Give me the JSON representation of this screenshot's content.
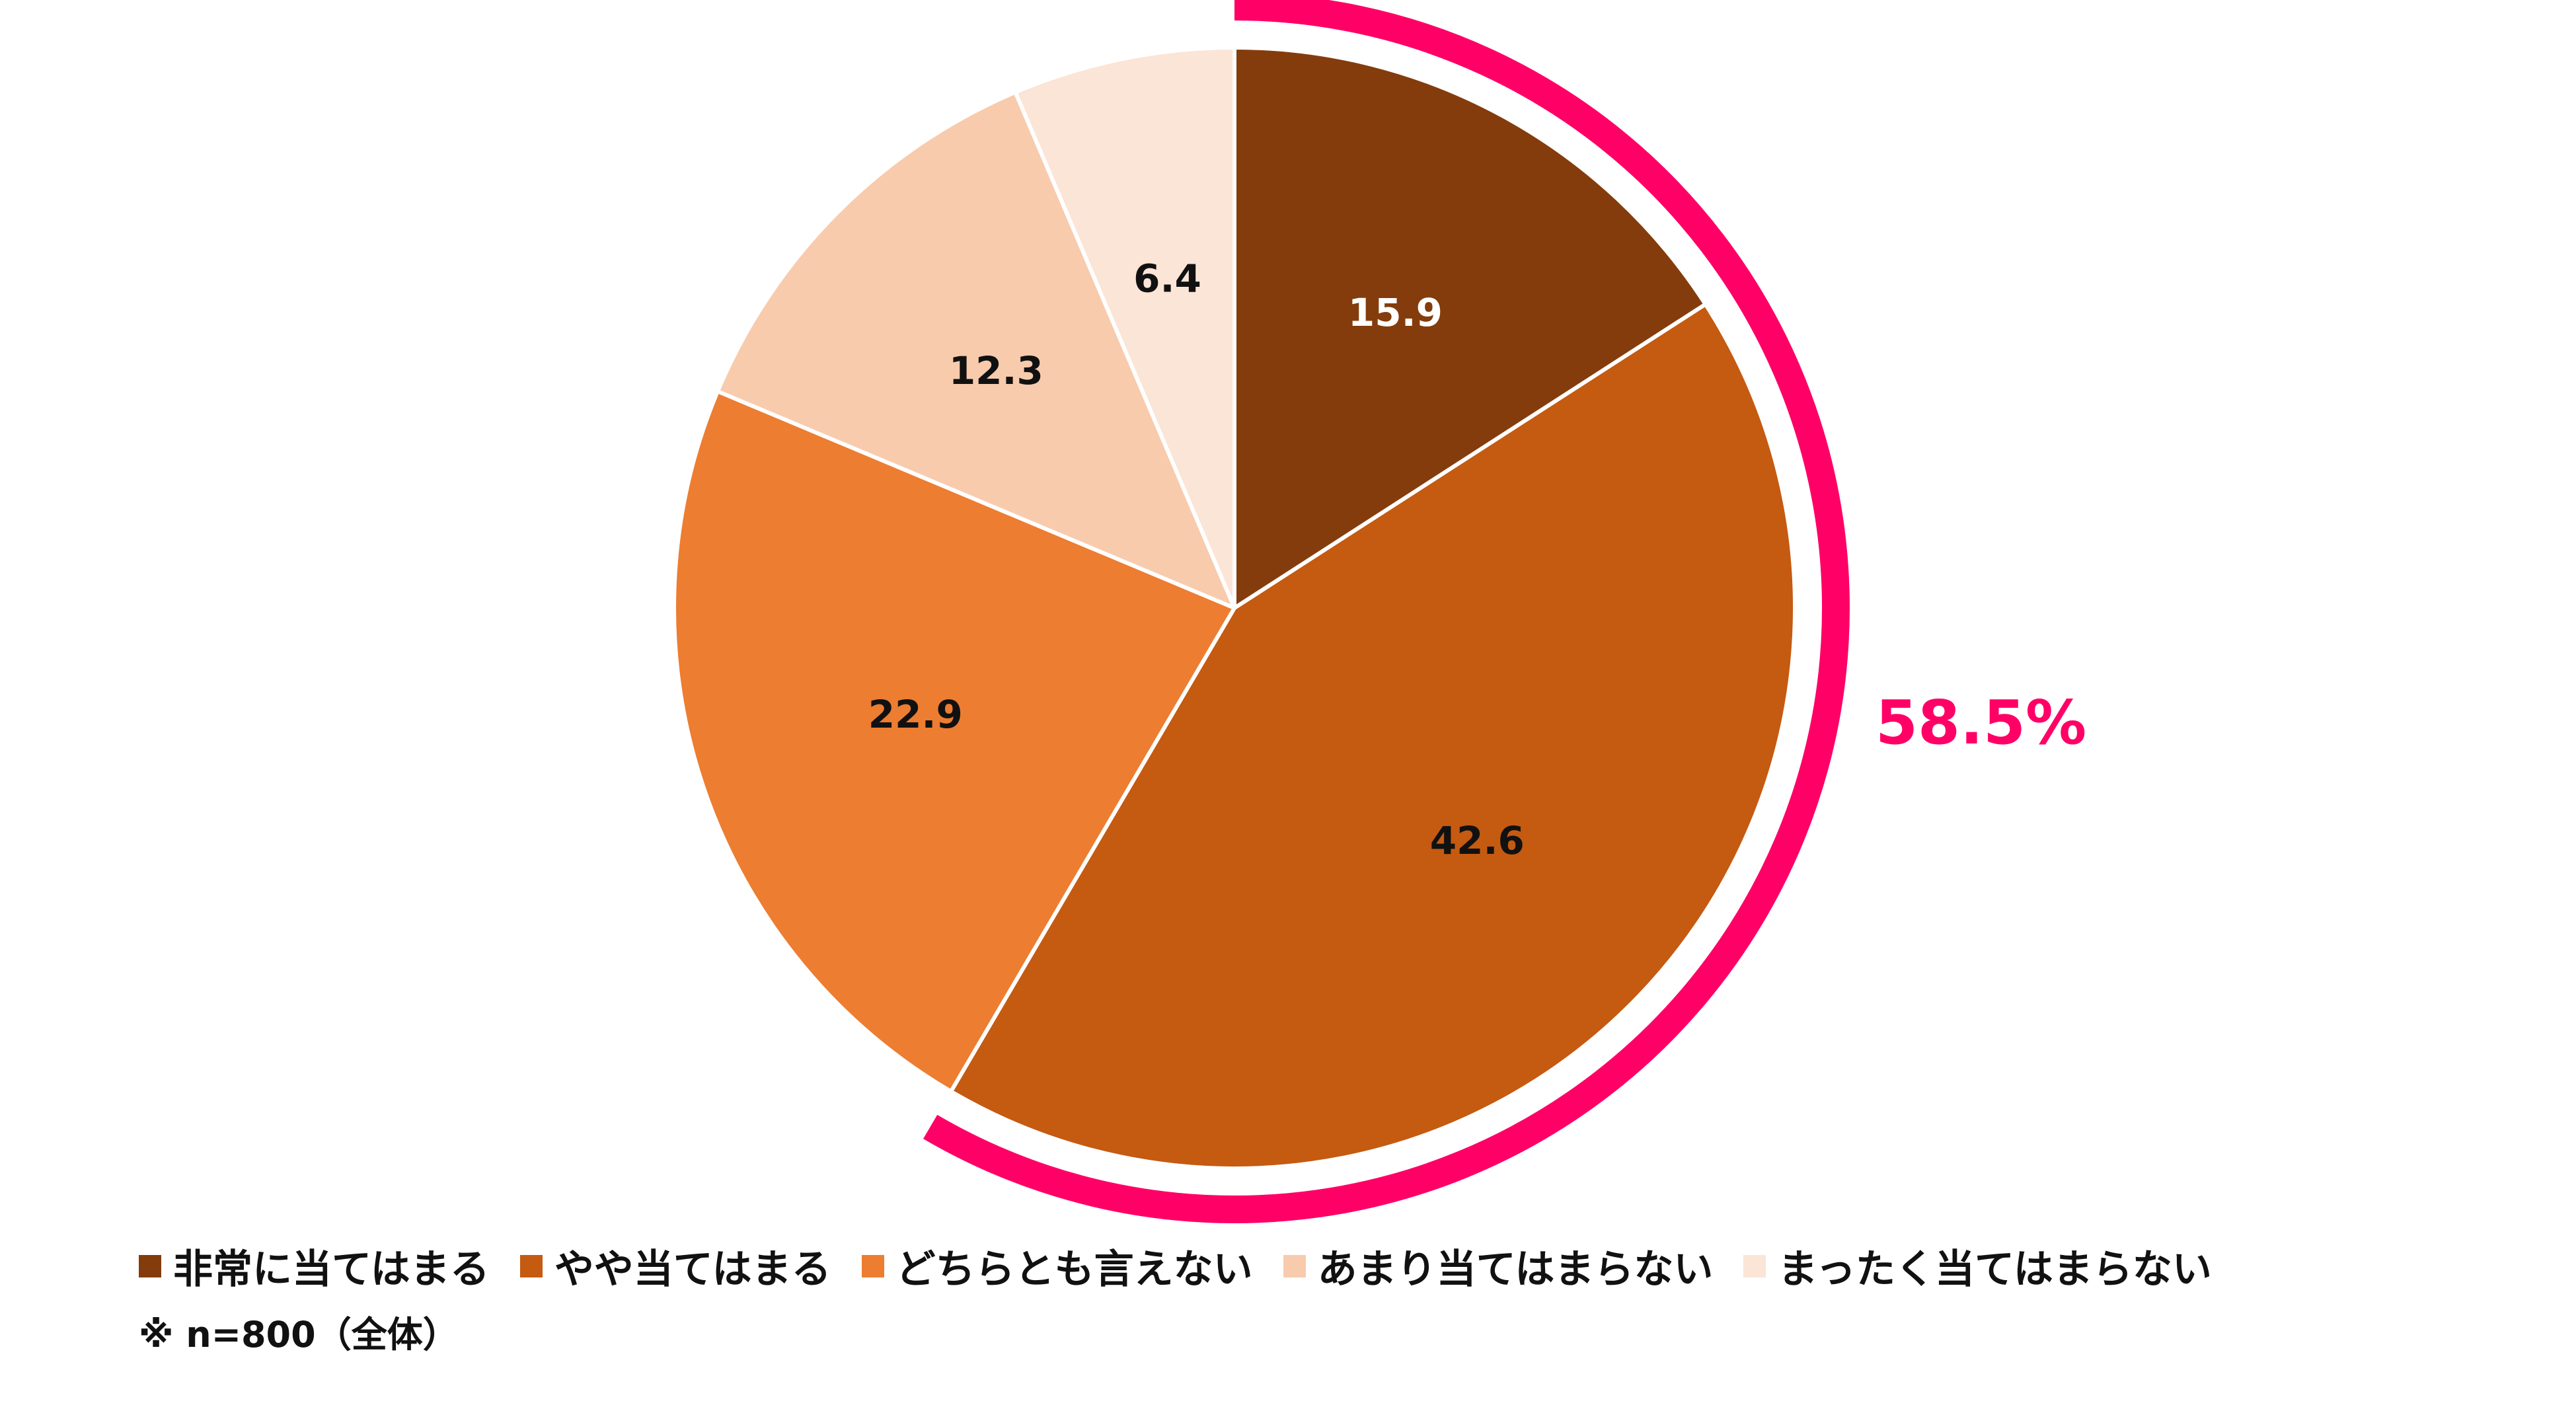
{
  "chart_data": {
    "type": "pie",
    "categories": [
      "非常に当てはまる",
      "やや当てはまる",
      "どちらとも言えない",
      "あまり当てはまらない",
      "まったく当てはまらない"
    ],
    "values": [
      15.9,
      42.6,
      22.9,
      12.3,
      6.4
    ],
    "value_labels": [
      "15.9",
      "42.6",
      "22.9",
      "12.3",
      "6.4"
    ],
    "colors": [
      "#843C0C",
      "#C55A11",
      "#ED7D31",
      "#F8CBAD",
      "#FBE5D6"
    ],
    "label_colors": [
      "#ffffff",
      "#111111",
      "#111111",
      "#111111",
      "#111111"
    ],
    "start_angle": "12 o'clock",
    "direction": "clockwise",
    "legend_position": "bottom",
    "callout": {
      "label": "58.5%",
      "covers_categories": [
        "非常に当てはまる",
        "やや当てはまる"
      ],
      "color": "#FF0066"
    }
  },
  "note": "※ n=800（全体）"
}
